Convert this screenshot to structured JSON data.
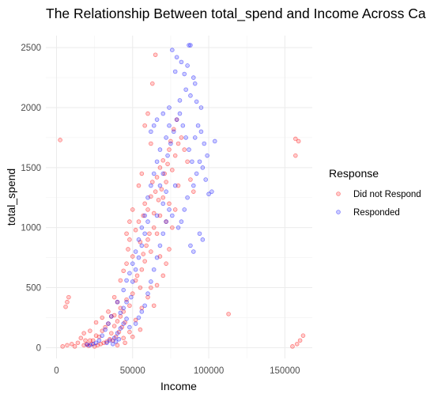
{
  "chart_data": {
    "type": "scatter",
    "title": "The Relationship Between total_spend and Income Across Ca",
    "xlabel": "Income",
    "ylabel": "total_spend",
    "xlim": [
      -7000,
      168000
    ],
    "ylim": [
      -90,
      2600
    ],
    "x_ticks": [
      0,
      50000,
      100000,
      150000
    ],
    "x_tick_labels": [
      "0",
      "50000",
      "100000",
      "150000"
    ],
    "y_ticks": [
      0,
      500,
      1000,
      1500,
      2000,
      2500
    ],
    "y_tick_labels": [
      "0",
      "500",
      "1000",
      "1500",
      "2000",
      "2500"
    ],
    "grid": true,
    "legend": {
      "title": "Response",
      "position": "right"
    },
    "series": [
      {
        "name": "Did not Respond",
        "color": "#FF0000",
        "points": [
          [
            2400,
            1730
          ],
          [
            157000,
            1740
          ],
          [
            159000,
            1720
          ],
          [
            157000,
            1600
          ],
          [
            113000,
            280
          ],
          [
            155000,
            10
          ],
          [
            158000,
            30
          ],
          [
            160000,
            60
          ],
          [
            162000,
            100
          ],
          [
            6000,
            340
          ],
          [
            7000,
            380
          ],
          [
            8000,
            420
          ],
          [
            4000,
            10
          ],
          [
            7000,
            20
          ],
          [
            10000,
            30
          ],
          [
            14000,
            40
          ],
          [
            16000,
            80
          ],
          [
            18000,
            120
          ],
          [
            19000,
            60
          ],
          [
            20000,
            30
          ],
          [
            22000,
            140
          ],
          [
            24000,
            60
          ],
          [
            26000,
            210
          ],
          [
            28000,
            90
          ],
          [
            30000,
            250
          ],
          [
            32000,
            170
          ],
          [
            34000,
            300
          ],
          [
            36000,
            260
          ],
          [
            38000,
            420
          ],
          [
            40000,
            380
          ],
          [
            42000,
            560
          ],
          [
            44000,
            640
          ],
          [
            46000,
            700
          ],
          [
            47000,
            820
          ],
          [
            48000,
            900
          ],
          [
            50000,
            760
          ],
          [
            52000,
            980
          ],
          [
            54000,
            1050
          ],
          [
            55000,
            880
          ],
          [
            57000,
            1100
          ],
          [
            58000,
            1200
          ],
          [
            60000,
            1150
          ],
          [
            62000,
            1260
          ],
          [
            63000,
            1380
          ],
          [
            65000,
            1300
          ],
          [
            66000,
            1420
          ],
          [
            68000,
            1500
          ],
          [
            70000,
            1560
          ],
          [
            72000,
            1380
          ],
          [
            74000,
            1650
          ],
          [
            76000,
            1480
          ],
          [
            78000,
            1600
          ],
          [
            80000,
            1700
          ],
          [
            60000,
            900
          ],
          [
            62000,
            800
          ],
          [
            64000,
            1000
          ],
          [
            66000,
            950
          ],
          [
            68000,
            1100
          ],
          [
            70000,
            1250
          ],
          [
            72000,
            1050
          ],
          [
            74000,
            1200
          ],
          [
            56000,
            650
          ],
          [
            58000,
            720
          ],
          [
            52000,
            560
          ],
          [
            50000,
            450
          ],
          [
            46000,
            400
          ],
          [
            44000,
            300
          ],
          [
            36000,
            120
          ],
          [
            38000,
            180
          ],
          [
            40000,
            220
          ],
          [
            42000,
            260
          ],
          [
            35000,
            70
          ],
          [
            33000,
            50
          ],
          [
            31000,
            40
          ],
          [
            29000,
            30
          ],
          [
            27000,
            20
          ],
          [
            25000,
            10
          ],
          [
            23000,
            30
          ],
          [
            21000,
            15
          ],
          [
            37000,
            60
          ],
          [
            39000,
            90
          ],
          [
            41000,
            130
          ],
          [
            43000,
            170
          ],
          [
            45000,
            210
          ],
          [
            48000,
            350
          ],
          [
            53000,
            600
          ],
          [
            55000,
            500
          ],
          [
            57000,
            780
          ],
          [
            59000,
            850
          ],
          [
            61000,
            950
          ],
          [
            64000,
            1120
          ],
          [
            67000,
            1230
          ],
          [
            69000,
            1320
          ],
          [
            71000,
            1450
          ],
          [
            73000,
            1530
          ],
          [
            75000,
            1720
          ],
          [
            77000,
            1820
          ],
          [
            79000,
            1900
          ],
          [
            82000,
            1750
          ],
          [
            84000,
            1650
          ],
          [
            86000,
            1550
          ],
          [
            88000,
            1400
          ],
          [
            90000,
            1300
          ],
          [
            76000,
            1000
          ],
          [
            78000,
            1150
          ],
          [
            80000,
            1350
          ],
          [
            74000,
            820
          ],
          [
            72000,
            700
          ],
          [
            70000,
            600
          ],
          [
            66000,
            520
          ],
          [
            65000,
            2440
          ],
          [
            63000,
            2200
          ],
          [
            60000,
            1950
          ],
          [
            58000,
            1850
          ],
          [
            62000,
            1700
          ],
          [
            54000,
            1350
          ],
          [
            56000,
            1450
          ],
          [
            50000,
            1150
          ],
          [
            48000,
            1050
          ],
          [
            46000,
            950
          ],
          [
            64000,
            350
          ],
          [
            60000,
            420
          ],
          [
            62000,
            500
          ],
          [
            68000,
            760
          ],
          [
            30000,
            140
          ],
          [
            34000,
            200
          ],
          [
            26000,
            100
          ],
          [
            22000,
            60
          ],
          [
            18000,
            20
          ],
          [
            12000,
            10
          ],
          [
            45000,
            40
          ],
          [
            50000,
            90
          ],
          [
            55000,
            150
          ],
          [
            40000,
            20
          ],
          [
            44000,
            80
          ],
          [
            48000,
            130
          ],
          [
            52000,
            230
          ],
          [
            56000,
            330
          ],
          [
            42000,
            330
          ],
          [
            38000,
            270
          ]
        ]
      },
      {
        "name": "Responded",
        "color": "#0000FF",
        "points": [
          [
            87000,
            2520
          ],
          [
            88000,
            2520
          ],
          [
            76000,
            2480
          ],
          [
            79000,
            2420
          ],
          [
            82000,
            2380
          ],
          [
            84000,
            2280
          ],
          [
            86000,
            2350
          ],
          [
            90000,
            2250
          ],
          [
            91000,
            2200
          ],
          [
            78000,
            2300
          ],
          [
            85000,
            2150
          ],
          [
            88000,
            2100
          ],
          [
            92000,
            2050
          ],
          [
            95000,
            2000
          ],
          [
            81000,
            2060
          ],
          [
            74000,
            2000
          ],
          [
            70000,
            1950
          ],
          [
            66000,
            1900
          ],
          [
            64000,
            1850
          ],
          [
            62000,
            1800
          ],
          [
            96000,
            1500
          ],
          [
            98000,
            1400
          ],
          [
            100000,
            1280
          ],
          [
            102000,
            1300
          ],
          [
            104000,
            1720
          ],
          [
            99000,
            1600
          ],
          [
            97000,
            1700
          ],
          [
            94000,
            1550
          ],
          [
            92000,
            1450
          ],
          [
            90000,
            1350
          ],
          [
            86000,
            1250
          ],
          [
            84000,
            1150
          ],
          [
            82000,
            1050
          ],
          [
            80000,
            1000
          ],
          [
            94000,
            950
          ],
          [
            96000,
            900
          ],
          [
            90000,
            800
          ],
          [
            88000,
            850
          ],
          [
            76000,
            1100
          ],
          [
            78000,
            1350
          ],
          [
            72000,
            1300
          ],
          [
            70000,
            1200
          ],
          [
            68000,
            1650
          ],
          [
            66000,
            1550
          ],
          [
            64000,
            1450
          ],
          [
            62000,
            1350
          ],
          [
            60000,
            1250
          ],
          [
            58000,
            1100
          ],
          [
            56000,
            1000
          ],
          [
            54000,
            900
          ],
          [
            52000,
            800
          ],
          [
            50000,
            700
          ],
          [
            48000,
            620
          ],
          [
            46000,
            560
          ],
          [
            44000,
            480
          ],
          [
            40000,
            380
          ],
          [
            36000,
            260
          ],
          [
            34000,
            200
          ],
          [
            32000,
            150
          ],
          [
            30000,
            100
          ],
          [
            28000,
            60
          ],
          [
            26000,
            40
          ],
          [
            24000,
            30
          ],
          [
            22000,
            20
          ],
          [
            20000,
            25
          ],
          [
            38000,
            80
          ],
          [
            40000,
            120
          ],
          [
            42000,
            160
          ],
          [
            44000,
            200
          ],
          [
            46000,
            240
          ],
          [
            35000,
            60
          ],
          [
            33000,
            40
          ],
          [
            37000,
            30
          ],
          [
            39000,
            50
          ],
          [
            41000,
            70
          ],
          [
            60000,
            450
          ],
          [
            62000,
            550
          ],
          [
            64000,
            650
          ],
          [
            66000,
            750
          ],
          [
            68000,
            850
          ],
          [
            70000,
            950
          ],
          [
            72000,
            1050
          ],
          [
            74000,
            1150
          ],
          [
            58000,
            350
          ],
          [
            56000,
            300
          ],
          [
            54000,
            250
          ],
          [
            52000,
            200
          ],
          [
            48000,
            170
          ],
          [
            73000,
            1600
          ],
          [
            75000,
            1700
          ],
          [
            77000,
            1800
          ],
          [
            79000,
            1900
          ],
          [
            81000,
            1950
          ],
          [
            83000,
            1850
          ],
          [
            85000,
            1750
          ],
          [
            87000,
            1650
          ],
          [
            89000,
            1550
          ],
          [
            91000,
            1750
          ],
          [
            93000,
            1850
          ],
          [
            95000,
            1800
          ],
          [
            66000,
            1100
          ],
          [
            68000,
            1350
          ],
          [
            70000,
            1450
          ],
          [
            72000,
            1750
          ],
          [
            74000,
            1850
          ],
          [
            60000,
            1050
          ],
          [
            58000,
            950
          ],
          [
            56000,
            850
          ],
          [
            54000,
            750
          ],
          [
            52000,
            650
          ],
          [
            50000,
            550
          ],
          [
            46000,
            380
          ],
          [
            44000,
            330
          ],
          [
            42000,
            290
          ],
          [
            49000,
            420
          ]
        ]
      }
    ]
  }
}
